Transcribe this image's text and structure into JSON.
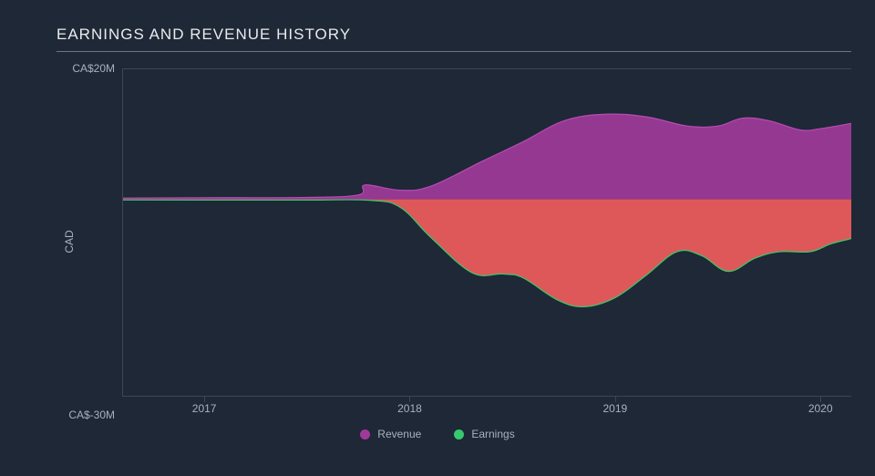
{
  "chart": {
    "type": "area",
    "title": "EARNINGS AND REVENUE HISTORY",
    "title_color": "#e8eaed",
    "title_fontsize": 17,
    "background_color": "#1e2836",
    "grid_color": "#3b4658",
    "axis_label_color": "#a9b1bf",
    "axis_label_fontsize": 12,
    "y_axis_title": "CAD",
    "ylim": [
      -30,
      20
    ],
    "y_ticks": [
      {
        "value": 20,
        "label": "CA$20M"
      },
      {
        "value": -30,
        "label": "CA$-30M"
      }
    ],
    "xlim": [
      2016.6,
      2020.15
    ],
    "x_ticks": [
      {
        "value": 2017,
        "label": "2017"
      },
      {
        "value": 2018,
        "label": "2018"
      },
      {
        "value": 2019,
        "label": "2019"
      },
      {
        "value": 2020,
        "label": "2020"
      }
    ],
    "zero_baseline": 0,
    "series": [
      {
        "name": "Revenue",
        "fill_color": "#a03a9a",
        "fill_opacity": 0.92,
        "stroke_color": "#b84bb2",
        "stroke_width": 1.2,
        "legend_swatch": "#a03a9a",
        "data": [
          {
            "x": 2016.6,
            "y": 0.2
          },
          {
            "x": 2017.0,
            "y": 0.25
          },
          {
            "x": 2017.5,
            "y": 0.3
          },
          {
            "x": 2017.75,
            "y": 0.7
          },
          {
            "x": 2017.78,
            "y": 2.2
          },
          {
            "x": 2017.95,
            "y": 1.4
          },
          {
            "x": 2018.1,
            "y": 2.0
          },
          {
            "x": 2018.35,
            "y": 5.8
          },
          {
            "x": 2018.55,
            "y": 8.8
          },
          {
            "x": 2018.75,
            "y": 12.0
          },
          {
            "x": 2018.95,
            "y": 13.0
          },
          {
            "x": 2019.15,
            "y": 12.6
          },
          {
            "x": 2019.35,
            "y": 11.2
          },
          {
            "x": 2019.5,
            "y": 11.2
          },
          {
            "x": 2019.62,
            "y": 12.4
          },
          {
            "x": 2019.75,
            "y": 12.0
          },
          {
            "x": 2019.9,
            "y": 10.6
          },
          {
            "x": 2020.0,
            "y": 10.8
          },
          {
            "x": 2020.15,
            "y": 11.6
          }
        ]
      },
      {
        "name": "Earnings",
        "fill_color": "#ef5c5c",
        "fill_opacity": 0.92,
        "stroke_color": "#36c96e",
        "stroke_width": 1.2,
        "legend_swatch": "#36c96e",
        "data": [
          {
            "x": 2016.6,
            "y": -0.1
          },
          {
            "x": 2017.0,
            "y": -0.12
          },
          {
            "x": 2017.5,
            "y": -0.12
          },
          {
            "x": 2017.8,
            "y": -0.15
          },
          {
            "x": 2017.95,
            "y": -1.2
          },
          {
            "x": 2018.1,
            "y": -5.8
          },
          {
            "x": 2018.3,
            "y": -11.2
          },
          {
            "x": 2018.45,
            "y": -11.4
          },
          {
            "x": 2018.55,
            "y": -12.0
          },
          {
            "x": 2018.72,
            "y": -15.4
          },
          {
            "x": 2018.85,
            "y": -16.4
          },
          {
            "x": 2019.0,
            "y": -15.0
          },
          {
            "x": 2019.15,
            "y": -11.6
          },
          {
            "x": 2019.3,
            "y": -8.0
          },
          {
            "x": 2019.42,
            "y": -8.6
          },
          {
            "x": 2019.55,
            "y": -11.0
          },
          {
            "x": 2019.68,
            "y": -9.0
          },
          {
            "x": 2019.8,
            "y": -8.0
          },
          {
            "x": 2019.95,
            "y": -8.0
          },
          {
            "x": 2020.05,
            "y": -6.8
          },
          {
            "x": 2020.15,
            "y": -6.0
          }
        ]
      }
    ],
    "legend": {
      "items": [
        {
          "label": "Revenue"
        },
        {
          "label": "Earnings"
        }
      ],
      "label_color": "#a9b1bf",
      "label_fontsize": 12
    }
  }
}
